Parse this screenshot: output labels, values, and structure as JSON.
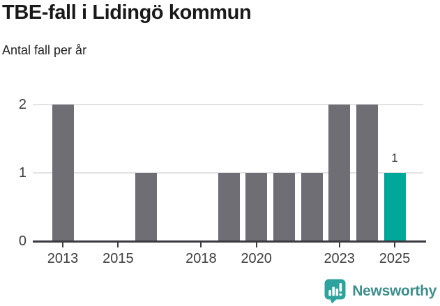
{
  "header": {
    "title": "TBE-fall i Lidingö kommun",
    "subtitle": "Antal fall per år"
  },
  "chart_data": {
    "type": "bar",
    "title": "TBE-fall i Lidingö kommun",
    "subtitle": "Antal fall per år",
    "categories": [
      2013,
      2014,
      2015,
      2016,
      2017,
      2018,
      2019,
      2020,
      2021,
      2022,
      2023,
      2024,
      2025
    ],
    "values": [
      2,
      0,
      0,
      1,
      0,
      0,
      1,
      1,
      1,
      1,
      2,
      2,
      1
    ],
    "xticks": [
      2013,
      2015,
      2018,
      2020,
      2023,
      2025
    ],
    "yticks": [
      0,
      1,
      2
    ],
    "ylim": [
      0,
      2
    ],
    "xlabel": "",
    "ylabel": "",
    "grid": "horizontal",
    "legend": "none",
    "bar_color": "#6F6E75",
    "highlight_color": "#00A79B",
    "highlight_category": 2025,
    "data_labels": [
      {
        "category": 2025,
        "text": "1"
      }
    ],
    "axis_color": "#3A3A40",
    "gridline_color": "#E3E3E3",
    "tick_label_color": "#3C3C3C"
  },
  "footer": {
    "brand": "Newsworthy",
    "brand_color": "#3E8E8B",
    "icon_color": "#2EA39D",
    "icon_glyph_color": "#FFFFFF"
  }
}
